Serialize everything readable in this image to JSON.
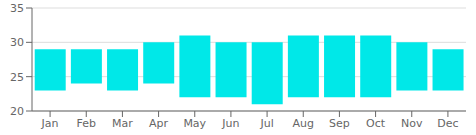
{
  "chart_data": {
    "type": "bar",
    "categories": [
      "Jan",
      "Feb",
      "Mar",
      "Apr",
      "May",
      "Jun",
      "Jul",
      "Aug",
      "Sep",
      "Oct",
      "Nov",
      "Dec"
    ],
    "values": [
      [
        23,
        29
      ],
      [
        24,
        29
      ],
      [
        23,
        29
      ],
      [
        24,
        30
      ],
      [
        22,
        31
      ],
      [
        22,
        30
      ],
      [
        21,
        30
      ],
      [
        22,
        31
      ],
      [
        22,
        31
      ],
      [
        22,
        31
      ],
      [
        23,
        30
      ],
      [
        23,
        29
      ]
    ],
    "color": "#00e8e8",
    "ylim": [
      20,
      35
    ],
    "yticks": [
      20,
      25,
      30,
      35
    ],
    "grid": true
  }
}
